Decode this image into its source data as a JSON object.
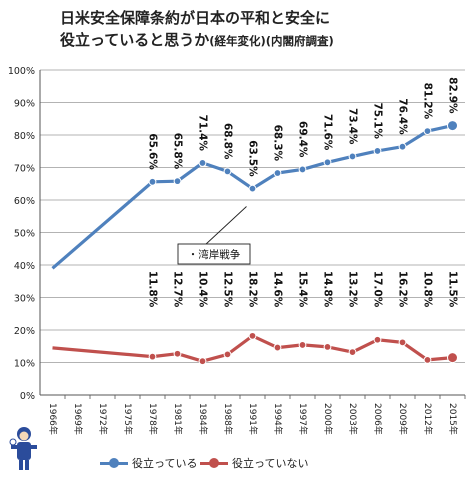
{
  "title_main": "日米安全保障条約が日本の平和と安全に",
  "title_line2": "役立っていると思うか",
  "title_note": "(経年変化)(内閣府調査)",
  "annotation": "・湾岸戦争",
  "legend": {
    "yes_label": "役立っている",
    "no_label": "役立っていない"
  },
  "colors": {
    "yes": "#4f81bd",
    "no": "#c0504d"
  },
  "chart_data": {
    "type": "line",
    "y_ticks": [
      "0%",
      "10%",
      "20%",
      "30%",
      "40%",
      "50%",
      "60%",
      "70%",
      "80%",
      "90%",
      "100%"
    ],
    "ylim": [
      0,
      100
    ],
    "x_ticks": [
      "1966年",
      "1969年",
      "1972年",
      "1975年",
      "1978年",
      "1981年",
      "1984年",
      "1988年",
      "1991年",
      "1994年",
      "1997年",
      "2000年",
      "2003年",
      "2006年",
      "2009年",
      "2012年",
      "2015年"
    ],
    "grid": true,
    "series": [
      {
        "name": "役立っている",
        "color": "#4f81bd",
        "points": [
          {
            "x": "1966年",
            "y": 39.0,
            "marker": false,
            "label": null
          },
          {
            "x": "1978年",
            "y": 65.6,
            "marker": true,
            "label": "65.6%"
          },
          {
            "x": "1981年",
            "y": 65.8,
            "marker": true,
            "label": "65.8%"
          },
          {
            "x": "1984年",
            "y": 71.4,
            "marker": true,
            "label": "71.4%"
          },
          {
            "x": "1988年",
            "y": 68.8,
            "marker": true,
            "label": "68.8%"
          },
          {
            "x": "1991年",
            "y": 63.5,
            "marker": true,
            "label": "63.5%"
          },
          {
            "x": "1994年",
            "y": 68.3,
            "marker": true,
            "label": "68.3%"
          },
          {
            "x": "1997年",
            "y": 69.4,
            "marker": true,
            "label": "69.4%"
          },
          {
            "x": "2000年",
            "y": 71.6,
            "marker": true,
            "label": "71.6%"
          },
          {
            "x": "2003年",
            "y": 73.4,
            "marker": true,
            "label": "73.4%"
          },
          {
            "x": "2006年",
            "y": 75.1,
            "marker": true,
            "label": "75.1%"
          },
          {
            "x": "2009年",
            "y": 76.4,
            "marker": true,
            "label": "76.4%"
          },
          {
            "x": "2012年",
            "y": 81.2,
            "marker": true,
            "label": "81.2%"
          },
          {
            "x": "2015年",
            "y": 82.9,
            "marker": true,
            "label": "82.9%"
          }
        ]
      },
      {
        "name": "役立っていない",
        "color": "#c0504d",
        "points": [
          {
            "x": "1966年",
            "y": 14.5,
            "marker": false,
            "label": null
          },
          {
            "x": "1978年",
            "y": 11.8,
            "marker": true,
            "label": "11.8%"
          },
          {
            "x": "1981年",
            "y": 12.7,
            "marker": true,
            "label": "12.7%"
          },
          {
            "x": "1984年",
            "y": 10.4,
            "marker": true,
            "label": "10.4%"
          },
          {
            "x": "1988年",
            "y": 12.5,
            "marker": true,
            "label": "12.5%"
          },
          {
            "x": "1991年",
            "y": 18.2,
            "marker": true,
            "label": "18.2%"
          },
          {
            "x": "1994年",
            "y": 14.6,
            "marker": true,
            "label": "14.6%"
          },
          {
            "x": "1997年",
            "y": 15.4,
            "marker": true,
            "label": "15.4%"
          },
          {
            "x": "2000年",
            "y": 14.8,
            "marker": true,
            "label": "14.8%"
          },
          {
            "x": "2003年",
            "y": 13.2,
            "marker": true,
            "label": "13.2%"
          },
          {
            "x": "2006年",
            "y": 17.0,
            "marker": true,
            "label": "17.0%"
          },
          {
            "x": "2009年",
            "y": 16.2,
            "marker": true,
            "label": "16.2%"
          },
          {
            "x": "2012年",
            "y": 10.8,
            "marker": true,
            "label": "10.8%"
          },
          {
            "x": "2015年",
            "y": 11.5,
            "marker": true,
            "label": "11.5%"
          }
        ]
      }
    ]
  }
}
